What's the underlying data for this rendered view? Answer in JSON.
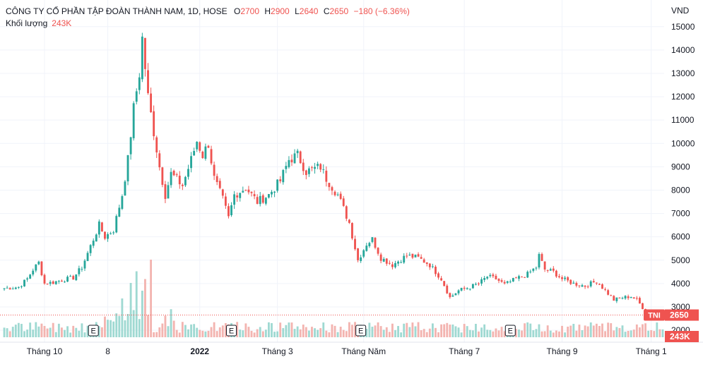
{
  "legend": {
    "title": "CÔNG TY CỔ PHẦN TẬP ĐOÀN THÀNH NAM, 1D, HOSE",
    "o_label": "O",
    "o_value": "2700",
    "h_label": "H",
    "h_value": "2900",
    "l_label": "L",
    "l_value": "2640",
    "c_label": "C",
    "c_value": "2650",
    "change": "−180 (−6.36%)",
    "volume_label": "Khối lượng",
    "volume_value": "243K"
  },
  "colors": {
    "up": "#26a69a",
    "down": "#ef5350",
    "up_volume": "#9fd9d2",
    "down_volume": "#f3b4b0",
    "grid": "#f0f3fa",
    "axis_text": "#131722",
    "price_line": "#ef5350"
  },
  "chart_data": {
    "type": "candlestick",
    "currency": "VND",
    "y_ticks": [
      "2000",
      "3000",
      "4000",
      "5000",
      "6000",
      "7000",
      "8000",
      "9000",
      "10000",
      "11000",
      "12000",
      "13000",
      "14000",
      "15000"
    ],
    "ylim": [
      1700,
      15900
    ],
    "x_ticks": [
      "Tháng 10",
      "8",
      "2022",
      "Tháng 3",
      "Tháng Năm",
      "Tháng 7",
      "Tháng 9",
      "Tháng 1"
    ],
    "x_tick_index": [
      14,
      36,
      68,
      95,
      125,
      160,
      194,
      225
    ],
    "bar_count": 230,
    "price_labels": {
      "symbol": "TNI",
      "price": "2650",
      "volume": "243K"
    },
    "last_price": 2650,
    "event_marker": "E",
    "events_index": [
      31,
      79,
      124,
      176
    ],
    "anchors": [
      [
        0,
        3800
      ],
      [
        5,
        3850
      ],
      [
        8,
        4200
      ],
      [
        10,
        4600
      ],
      [
        12,
        4900
      ],
      [
        14,
        4000
      ],
      [
        17,
        4050
      ],
      [
        20,
        4150
      ],
      [
        24,
        4250
      ],
      [
        27,
        4700
      ],
      [
        30,
        5600
      ],
      [
        33,
        6500
      ],
      [
        35,
        6000
      ],
      [
        38,
        6300
      ],
      [
        41,
        7800
      ],
      [
        43,
        9300
      ],
      [
        45,
        11500
      ],
      [
        47,
        13000
      ],
      [
        48,
        14500
      ],
      [
        50,
        12000
      ],
      [
        52,
        10500
      ],
      [
        54,
        9000
      ],
      [
        56,
        7800
      ],
      [
        58,
        8700
      ],
      [
        62,
        8200
      ],
      [
        65,
        9300
      ],
      [
        67,
        10100
      ],
      [
        69,
        9500
      ],
      [
        71,
        10000
      ],
      [
        73,
        8500
      ],
      [
        76,
        7600
      ],
      [
        78,
        6800
      ],
      [
        80,
        7800
      ],
      [
        84,
        8100
      ],
      [
        88,
        7500
      ],
      [
        92,
        7800
      ],
      [
        96,
        8400
      ],
      [
        99,
        9300
      ],
      [
        102,
        9500
      ],
      [
        105,
        8800
      ],
      [
        110,
        9000
      ],
      [
        112,
        8500
      ],
      [
        116,
        7800
      ],
      [
        120,
        6600
      ],
      [
        123,
        5000
      ],
      [
        126,
        5700
      ],
      [
        128,
        5900
      ],
      [
        131,
        5100
      ],
      [
        135,
        4800
      ],
      [
        140,
        5200
      ],
      [
        144,
        5100
      ],
      [
        148,
        4800
      ],
      [
        152,
        4200
      ],
      [
        155,
        3400
      ],
      [
        158,
        3700
      ],
      [
        162,
        3850
      ],
      [
        165,
        4000
      ],
      [
        168,
        4300
      ],
      [
        171,
        4200
      ],
      [
        174,
        3950
      ],
      [
        178,
        4200
      ],
      [
        182,
        4400
      ],
      [
        185,
        4700
      ],
      [
        186,
        5200
      ],
      [
        188,
        4600
      ],
      [
        191,
        4500
      ],
      [
        194,
        4200
      ],
      [
        198,
        4000
      ],
      [
        202,
        3900
      ],
      [
        206,
        4100
      ],
      [
        209,
        3700
      ],
      [
        212,
        3300
      ],
      [
        215,
        3400
      ],
      [
        218,
        3450
      ],
      [
        220,
        3300
      ],
      [
        223,
        2800
      ],
      [
        225,
        2700
      ],
      [
        229,
        2650
      ]
    ],
    "volume_spikes": [
      [
        41,
        0.5
      ],
      [
        44,
        0.7
      ],
      [
        46,
        0.85
      ],
      [
        48,
        0.6
      ],
      [
        49,
        0.75
      ],
      [
        51,
        1.0
      ],
      [
        45,
        0.35
      ],
      [
        43,
        0.3
      ]
    ]
  }
}
